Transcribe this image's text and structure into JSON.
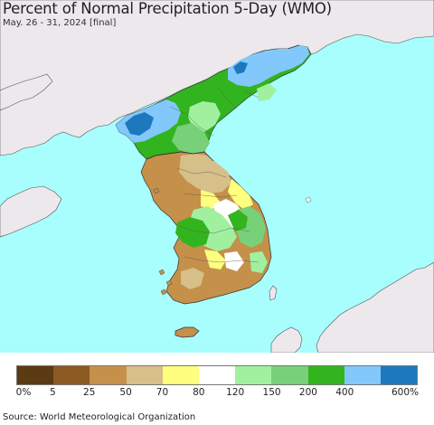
{
  "title": "Percent of Normal Precipitation 5-Day (WMO)",
  "subtitle": "May. 26 - 31, 2024 [final]",
  "source": "Source: World Meteorological Organization",
  "colors": {
    "ocean": "#a8fdfd",
    "foreign_land": "#ece8ec",
    "boundary": "#333333"
  },
  "legend": {
    "colors": [
      "#5a3b12",
      "#8c5a22",
      "#c4904a",
      "#d6bf88",
      "#ffff7f",
      "#ffffff",
      "#a0f0a0",
      "#78d078",
      "#32b41e",
      "#82c8fa",
      "#1e78be"
    ],
    "labels": [
      "0%",
      "5",
      "25",
      "50",
      "70",
      "80",
      "120",
      "150",
      "200",
      "400",
      "600%"
    ]
  }
}
